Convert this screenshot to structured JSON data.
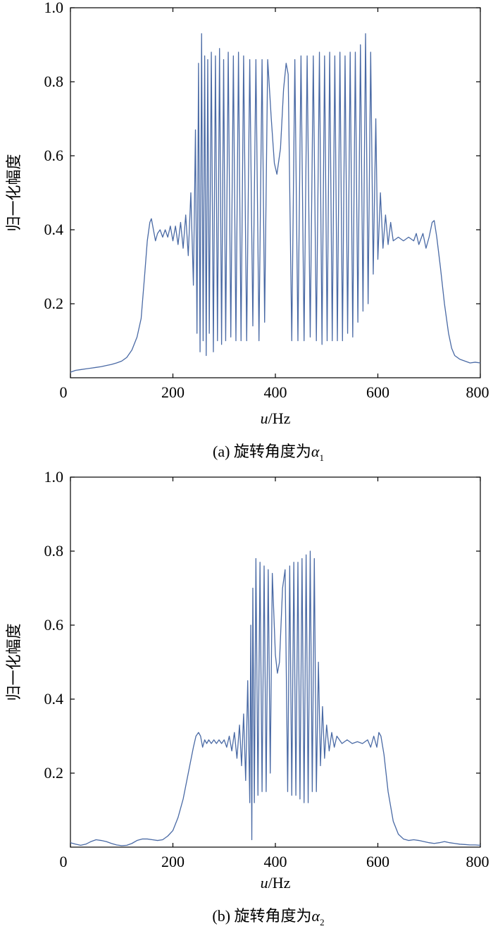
{
  "figure": {
    "chart_colors": {
      "line": "#4a6aa5",
      "axis": "#000000"
    }
  },
  "chart_data": [
    {
      "type": "line",
      "caption_prefix": "(a) 旋转角度为",
      "caption_symbol": "α",
      "caption_subscript": "1",
      "xlabel_italic": "u",
      "xlabel_rest": "/Hz",
      "ylabel": "归一化幅度",
      "xlim": [
        0,
        800
      ],
      "ylim": [
        0,
        1.0
      ],
      "x_ticks": [
        0,
        200,
        400,
        600,
        800
      ],
      "x_tick_labels": [
        "0",
        "200",
        "400",
        "600",
        "800"
      ],
      "y_ticks": [
        0.2,
        0.4,
        0.6,
        0.8,
        1.0
      ],
      "y_tick_labels": [
        "0.2",
        "0.4",
        "0.6",
        "0.8",
        "1.0"
      ],
      "grid": false,
      "series": [
        {
          "points": [
            [
              0,
              0.015
            ],
            [
              10,
              0.02
            ],
            [
              20,
              0.022
            ],
            [
              30,
              0.024
            ],
            [
              40,
              0.026
            ],
            [
              50,
              0.028
            ],
            [
              60,
              0.03
            ],
            [
              70,
              0.033
            ],
            [
              80,
              0.036
            ],
            [
              90,
              0.04
            ],
            [
              100,
              0.045
            ],
            [
              110,
              0.055
            ],
            [
              120,
              0.075
            ],
            [
              130,
              0.11
            ],
            [
              138,
              0.16
            ],
            [
              145,
              0.28
            ],
            [
              150,
              0.37
            ],
            [
              155,
              0.42
            ],
            [
              158,
              0.43
            ],
            [
              162,
              0.4
            ],
            [
              166,
              0.37
            ],
            [
              170,
              0.39
            ],
            [
              175,
              0.4
            ],
            [
              180,
              0.38
            ],
            [
              185,
              0.4
            ],
            [
              190,
              0.38
            ],
            [
              195,
              0.41
            ],
            [
              200,
              0.37
            ],
            [
              205,
              0.41
            ],
            [
              210,
              0.36
            ],
            [
              215,
              0.42
            ],
            [
              220,
              0.35
            ],
            [
              225,
              0.44
            ],
            [
              230,
              0.33
            ],
            [
              235,
              0.5
            ],
            [
              240,
              0.25
            ],
            [
              244,
              0.67
            ],
            [
              247,
              0.12
            ],
            [
              250,
              0.85
            ],
            [
              253,
              0.07
            ],
            [
              256,
              0.93
            ],
            [
              259,
              0.1
            ],
            [
              262,
              0.87
            ],
            [
              265,
              0.06
            ],
            [
              268,
              0.86
            ],
            [
              271,
              0.12
            ],
            [
              275,
              0.88
            ],
            [
              279,
              0.07
            ],
            [
              283,
              0.87
            ],
            [
              287,
              0.1
            ],
            [
              291,
              0.89
            ],
            [
              295,
              0.09
            ],
            [
              299,
              0.86
            ],
            [
              303,
              0.1
            ],
            [
              308,
              0.88
            ],
            [
              313,
              0.11
            ],
            [
              318,
              0.87
            ],
            [
              323,
              0.1
            ],
            [
              328,
              0.88
            ],
            [
              333,
              0.1
            ],
            [
              338,
              0.87
            ],
            [
              344,
              0.1
            ],
            [
              350,
              0.86
            ],
            [
              356,
              0.14
            ],
            [
              362,
              0.86
            ],
            [
              368,
              0.1
            ],
            [
              374,
              0.86
            ],
            [
              379,
              0.15
            ],
            [
              385,
              0.86
            ],
            [
              392,
              0.7
            ],
            [
              398,
              0.58
            ],
            [
              403,
              0.55
            ],
            [
              410,
              0.62
            ],
            [
              416,
              0.78
            ],
            [
              421,
              0.85
            ],
            [
              425,
              0.82
            ],
            [
              432,
              0.1
            ],
            [
              438,
              0.86
            ],
            [
              444,
              0.1
            ],
            [
              450,
              0.87
            ],
            [
              456,
              0.1
            ],
            [
              462,
              0.87
            ],
            [
              468,
              0.11
            ],
            [
              474,
              0.87
            ],
            [
              480,
              0.1
            ],
            [
              486,
              0.88
            ],
            [
              491,
              0.09
            ],
            [
              496,
              0.87
            ],
            [
              501,
              0.1
            ],
            [
              506,
              0.88
            ],
            [
              511,
              0.1
            ],
            [
              516,
              0.87
            ],
            [
              521,
              0.1
            ],
            [
              526,
              0.88
            ],
            [
              531,
              0.1
            ],
            [
              536,
              0.87
            ],
            [
              541,
              0.12
            ],
            [
              546,
              0.88
            ],
            [
              551,
              0.11
            ],
            [
              556,
              0.88
            ],
            [
              561,
              0.15
            ],
            [
              566,
              0.9
            ],
            [
              571,
              0.18
            ],
            [
              576,
              0.93
            ],
            [
              581,
              0.2
            ],
            [
              586,
              0.88
            ],
            [
              591,
              0.28
            ],
            [
              596,
              0.7
            ],
            [
              600,
              0.32
            ],
            [
              605,
              0.5
            ],
            [
              610,
              0.35
            ],
            [
              615,
              0.44
            ],
            [
              620,
              0.36
            ],
            [
              625,
              0.42
            ],
            [
              630,
              0.37
            ],
            [
              640,
              0.38
            ],
            [
              650,
              0.37
            ],
            [
              660,
              0.38
            ],
            [
              670,
              0.37
            ],
            [
              675,
              0.39
            ],
            [
              680,
              0.36
            ],
            [
              688,
              0.39
            ],
            [
              694,
              0.35
            ],
            [
              700,
              0.38
            ],
            [
              706,
              0.42
            ],
            [
              710,
              0.425
            ],
            [
              715,
              0.38
            ],
            [
              722,
              0.3
            ],
            [
              730,
              0.2
            ],
            [
              738,
              0.12
            ],
            [
              744,
              0.08
            ],
            [
              750,
              0.06
            ],
            [
              760,
              0.05
            ],
            [
              770,
              0.045
            ],
            [
              780,
              0.04
            ],
            [
              790,
              0.042
            ],
            [
              800,
              0.04
            ]
          ]
        }
      ]
    },
    {
      "type": "line",
      "caption_prefix": "(b) 旋转角度为",
      "caption_symbol": "α",
      "caption_subscript": "2",
      "xlabel_italic": "u",
      "xlabel_rest": "/Hz",
      "ylabel": "归一化幅度",
      "xlim": [
        0,
        800
      ],
      "ylim": [
        0,
        1.0
      ],
      "x_ticks": [
        0,
        200,
        400,
        600,
        800
      ],
      "x_tick_labels": [
        "0",
        "200",
        "400",
        "600",
        "800"
      ],
      "y_ticks": [
        0.2,
        0.4,
        0.6,
        0.8,
        1.0
      ],
      "y_tick_labels": [
        "0.2",
        "0.4",
        "0.6",
        "0.8",
        "1.0"
      ],
      "grid": false,
      "series": [
        {
          "points": [
            [
              0,
              0.012
            ],
            [
              10,
              0.008
            ],
            [
              20,
              0.005
            ],
            [
              30,
              0.008
            ],
            [
              40,
              0.015
            ],
            [
              50,
              0.02
            ],
            [
              60,
              0.018
            ],
            [
              70,
              0.015
            ],
            [
              80,
              0.01
            ],
            [
              90,
              0.006
            ],
            [
              100,
              0.004
            ],
            [
              110,
              0.005
            ],
            [
              120,
              0.01
            ],
            [
              130,
              0.018
            ],
            [
              140,
              0.022
            ],
            [
              150,
              0.022
            ],
            [
              160,
              0.02
            ],
            [
              170,
              0.018
            ],
            [
              180,
              0.02
            ],
            [
              190,
              0.03
            ],
            [
              200,
              0.045
            ],
            [
              210,
              0.08
            ],
            [
              220,
              0.13
            ],
            [
              230,
              0.2
            ],
            [
              240,
              0.27
            ],
            [
              245,
              0.3
            ],
            [
              250,
              0.31
            ],
            [
              254,
              0.3
            ],
            [
              258,
              0.27
            ],
            [
              262,
              0.29
            ],
            [
              266,
              0.28
            ],
            [
              270,
              0.29
            ],
            [
              275,
              0.28
            ],
            [
              280,
              0.29
            ],
            [
              285,
              0.28
            ],
            [
              290,
              0.29
            ],
            [
              295,
              0.28
            ],
            [
              300,
              0.29
            ],
            [
              305,
              0.27
            ],
            [
              310,
              0.3
            ],
            [
              315,
              0.26
            ],
            [
              320,
              0.31
            ],
            [
              325,
              0.24
            ],
            [
              330,
              0.33
            ],
            [
              334,
              0.22
            ],
            [
              338,
              0.36
            ],
            [
              342,
              0.18
            ],
            [
              346,
              0.45
            ],
            [
              350,
              0.12
            ],
            [
              352,
              0.6
            ],
            [
              354,
              0.02
            ],
            [
              356,
              0.7
            ],
            [
              359,
              0.12
            ],
            [
              362,
              0.78
            ],
            [
              366,
              0.14
            ],
            [
              370,
              0.77
            ],
            [
              374,
              0.15
            ],
            [
              378,
              0.76
            ],
            [
              382,
              0.15
            ],
            [
              386,
              0.75
            ],
            [
              390,
              0.2
            ],
            [
              394,
              0.74
            ],
            [
              400,
              0.52
            ],
            [
              404,
              0.47
            ],
            [
              408,
              0.5
            ],
            [
              414,
              0.7
            ],
            [
              419,
              0.75
            ],
            [
              424,
              0.15
            ],
            [
              428,
              0.76
            ],
            [
              432,
              0.14
            ],
            [
              436,
              0.77
            ],
            [
              440,
              0.14
            ],
            [
              444,
              0.77
            ],
            [
              448,
              0.13
            ],
            [
              452,
              0.78
            ],
            [
              456,
              0.12
            ],
            [
              460,
              0.79
            ],
            [
              464,
              0.12
            ],
            [
              468,
              0.8
            ],
            [
              472,
              0.15
            ],
            [
              476,
              0.78
            ],
            [
              480,
              0.15
            ],
            [
              484,
              0.5
            ],
            [
              488,
              0.22
            ],
            [
              492,
              0.38
            ],
            [
              496,
              0.24
            ],
            [
              500,
              0.33
            ],
            [
              505,
              0.26
            ],
            [
              510,
              0.31
            ],
            [
              515,
              0.27
            ],
            [
              520,
              0.3
            ],
            [
              530,
              0.28
            ],
            [
              540,
              0.29
            ],
            [
              550,
              0.28
            ],
            [
              560,
              0.285
            ],
            [
              570,
              0.28
            ],
            [
              580,
              0.29
            ],
            [
              586,
              0.27
            ],
            [
              592,
              0.3
            ],
            [
              598,
              0.27
            ],
            [
              602,
              0.31
            ],
            [
              606,
              0.3
            ],
            [
              612,
              0.25
            ],
            [
              620,
              0.15
            ],
            [
              630,
              0.07
            ],
            [
              640,
              0.035
            ],
            [
              650,
              0.022
            ],
            [
              660,
              0.018
            ],
            [
              670,
              0.02
            ],
            [
              680,
              0.018
            ],
            [
              690,
              0.015
            ],
            [
              700,
              0.012
            ],
            [
              710,
              0.01
            ],
            [
              720,
              0.012
            ],
            [
              730,
              0.015
            ],
            [
              740,
              0.012
            ],
            [
              750,
              0.01
            ],
            [
              760,
              0.008
            ],
            [
              770,
              0.007
            ],
            [
              780,
              0.006
            ],
            [
              790,
              0.006
            ],
            [
              800,
              0.005
            ]
          ]
        }
      ]
    }
  ]
}
